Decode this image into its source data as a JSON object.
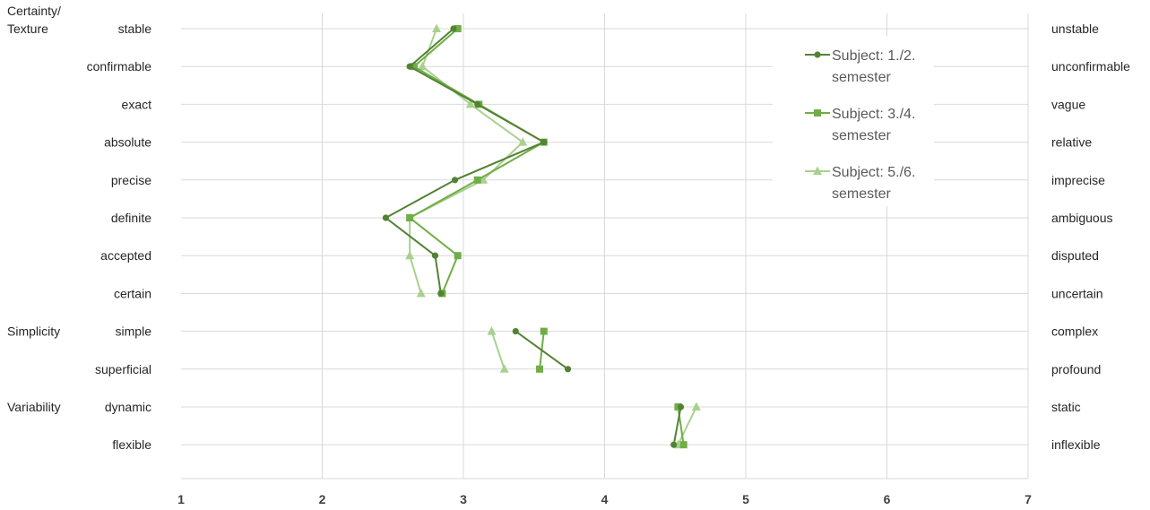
{
  "chart_data": {
    "type": "line",
    "orientation": "horizontal-profile",
    "x_ticks": [
      "1",
      "2",
      "3",
      "4",
      "5",
      "6",
      "7"
    ],
    "xlim": [
      1,
      7
    ],
    "grid": "vertical and horizontal gridlines on",
    "legend_position": "top-right",
    "groups": [
      {
        "label": "Certainty/\nTexture",
        "start_row": 0
      },
      {
        "label": "Simplicity",
        "start_row": 8
      },
      {
        "label": "Variability",
        "start_row": 10
      }
    ],
    "left_labels": [
      "stable",
      "confirmable",
      "exact",
      "absolute",
      "precise",
      "definite",
      "accepted",
      "certain",
      "simple",
      "superficial",
      "dynamic",
      "flexible"
    ],
    "right_labels": [
      "unstable",
      "unconfirmable",
      "vague",
      "relative",
      "imprecise",
      "ambiguous",
      "disputed",
      "uncertain",
      "complex",
      "profound",
      "static",
      "inflexible"
    ],
    "segments": [
      [
        0,
        7
      ],
      [
        8,
        9
      ],
      [
        10,
        11
      ]
    ],
    "series": [
      {
        "name": "Subject: 1./2.\nsemester",
        "marker": "circle",
        "color": "#548235",
        "values": [
          2.93,
          2.62,
          3.1,
          3.57,
          2.94,
          2.45,
          2.8,
          2.84,
          3.37,
          3.74,
          4.54,
          4.49
        ]
      },
      {
        "name": "Subject: 3./4.\nsemester",
        "marker": "square",
        "color": "#70AD47",
        "values": [
          2.96,
          2.65,
          3.11,
          3.57,
          3.1,
          2.62,
          2.96,
          2.85,
          3.57,
          3.54,
          4.52,
          4.56
        ]
      },
      {
        "name": "Subject: 5./6.\nsemester",
        "marker": "triangle",
        "color": "#A9D18E",
        "values": [
          2.81,
          2.71,
          3.05,
          3.42,
          3.14,
          2.62,
          2.62,
          2.7,
          3.2,
          3.29,
          4.65,
          4.52
        ]
      }
    ]
  }
}
